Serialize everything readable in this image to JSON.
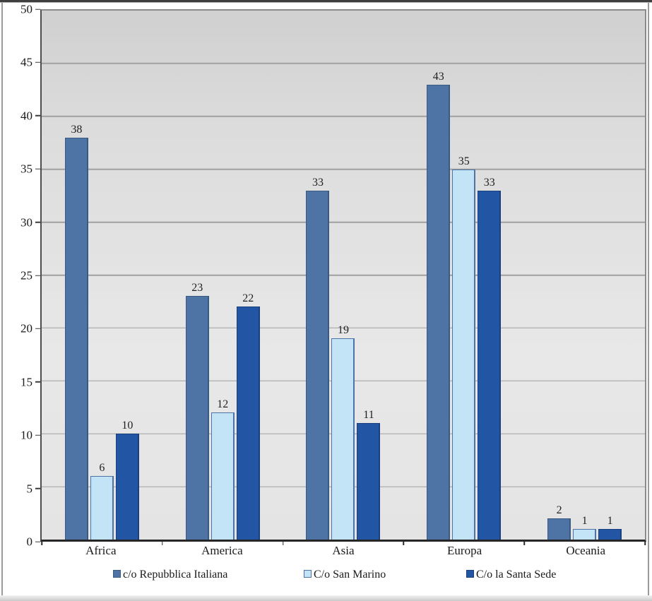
{
  "chart_data": {
    "type": "bar",
    "title": "",
    "xlabel": "",
    "ylabel": "",
    "categories": [
      "Africa",
      "America",
      "Asia",
      "Europa",
      "Oceania"
    ],
    "series": [
      {
        "name": "c/o Repubblica Italiana",
        "values": [
          38,
          23,
          33,
          43,
          2
        ],
        "fill": "#4e74a6",
        "border": "#3a5a82"
      },
      {
        "name": "C/o San Marino",
        "values": [
          6,
          12,
          19,
          35,
          1
        ],
        "fill": "#c3e3f7",
        "border": "#4e74a6"
      },
      {
        "name": "C/o la Santa Sede",
        "values": [
          10,
          22,
          11,
          33,
          1
        ],
        "fill": "#2255a4",
        "border": "#1a4080"
      }
    ],
    "yticks": [
      0,
      5,
      10,
      15,
      20,
      25,
      30,
      35,
      40,
      45,
      50
    ],
    "ylim": [
      0,
      50
    ],
    "grid": true,
    "gridline_color": "#a0a0a0",
    "axis_color": "#262626",
    "plot_bg_top": "#d0d0d0",
    "plot_bg_bottom": "#e4e4e4",
    "value_labels": true,
    "legend_position": "bottom"
  }
}
